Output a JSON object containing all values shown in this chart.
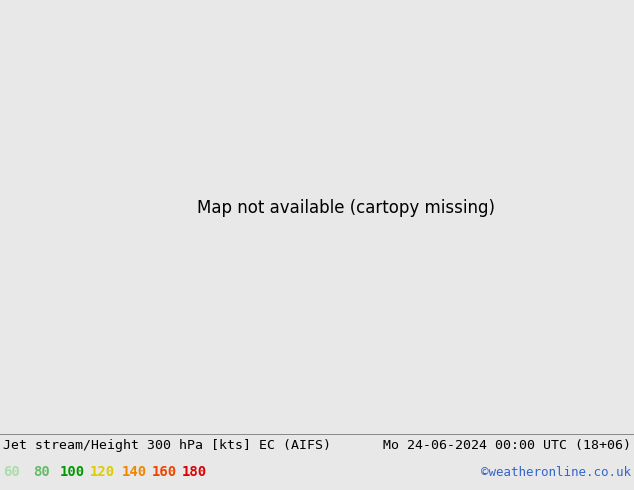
{
  "title_left": "Jet stream/Height 300 hPa [kts] EC (AIFS)",
  "title_right": "Mo 24-06-2024 00:00 UTC (18+06)",
  "copyright": "©weatheronline.co.uk",
  "legend_values": [
    60,
    80,
    100,
    120,
    140,
    160,
    180
  ],
  "legend_colors": [
    "#b4e6b4",
    "#78c878",
    "#00aa00",
    "#f0d000",
    "#f09000",
    "#f05000",
    "#f0a000"
  ],
  "bg_color": "#e8e8e8",
  "land_color": "#c8c8c8",
  "sea_color": "#e8e8e8",
  "map_light_green": "#d4eec4",
  "title_fontsize": 9.5,
  "legend_fontsize": 10,
  "copyright_color": "#3366cc",
  "title_color": "#000000",
  "extent": [
    -60,
    50,
    25,
    75
  ],
  "jet_band_colors": [
    "#c8f0c8",
    "#98d898",
    "#50c050",
    "#28b028",
    "#00aa00",
    "#78c800",
    "#f0d000"
  ],
  "jet_band_widths": [
    5.0,
    3.5,
    2.2,
    1.4,
    0.9,
    0.5,
    0.25
  ]
}
